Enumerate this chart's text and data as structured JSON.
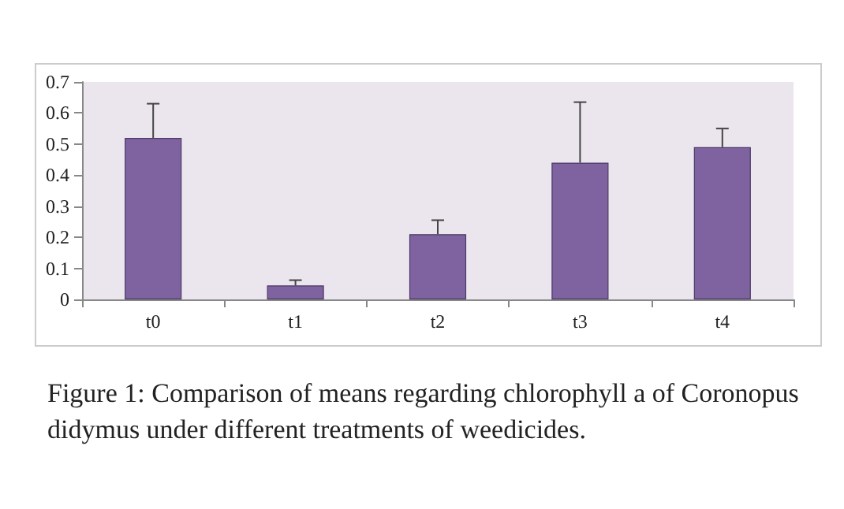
{
  "chart_data": {
    "type": "bar",
    "title": "Figure 1: Comparison of means regarding chlorophyll a of Coronopus didymus under different treatments of weedicides.",
    "categories": [
      "t0",
      "t1",
      "t2",
      "t3",
      "t4"
    ],
    "values": [
      0.52,
      0.045,
      0.21,
      0.44,
      0.49
    ],
    "errors": [
      [
        0.52,
        0.63
      ],
      [
        0.045,
        0.062
      ],
      [
        0.21,
        0.255
      ],
      [
        0.44,
        0.635
      ],
      [
        0.49,
        0.55
      ]
    ],
    "color": "#7f63a1",
    "ylim": [
      0,
      0.7
    ],
    "yticks": [
      0,
      0.1,
      0.2,
      0.3,
      0.4,
      0.5,
      0.6,
      0.7
    ],
    "grid": false
  }
}
